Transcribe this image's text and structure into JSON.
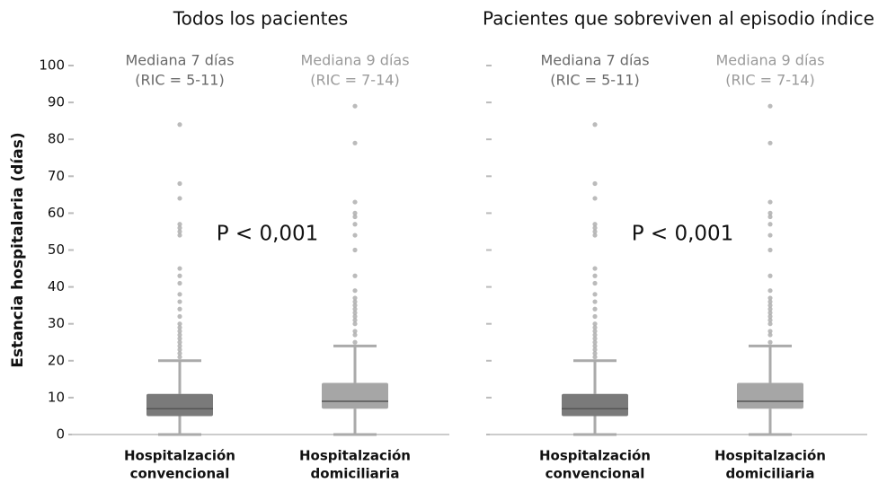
{
  "chart_data": [
    {
      "type": "box",
      "title": "Todos los pacientes",
      "ylabel": "Estancia hospitalaria (días)",
      "show_tick_labels": true,
      "ylim": [
        0,
        100
      ],
      "yticks": [
        0,
        10,
        20,
        30,
        40,
        50,
        60,
        70,
        80,
        90,
        100
      ],
      "categories": [
        [
          "Hospitalzación",
          "convencional"
        ],
        [
          "Hospitalzación",
          "domiciliaria"
        ]
      ],
      "annotations": [
        [
          "Mediana 7 días",
          "(RIC = 5-11)"
        ],
        [
          "Mediana 9 días",
          "(RIC = 7-14)"
        ]
      ],
      "p_label": "P < 0,001",
      "boxes": [
        {
          "color": "#7a7a7a",
          "text_color": "#6a6a6a",
          "min": 0,
          "q1": 5,
          "median": 7,
          "q3": 11,
          "max": 20,
          "outliers": [
            21,
            22,
            23,
            24,
            25,
            26,
            27,
            28,
            29,
            30,
            32,
            34,
            36,
            38,
            41,
            43,
            45,
            54,
            55,
            56,
            57,
            64,
            68,
            84
          ]
        },
        {
          "color": "#a6a6a6",
          "text_color": "#9a9a9a",
          "min": 0,
          "q1": 7,
          "median": 9,
          "q3": 14,
          "max": 24,
          "outliers": [
            25,
            27,
            28,
            30,
            31,
            32,
            33,
            34,
            35,
            36,
            37,
            39,
            43,
            50,
            54,
            57,
            59,
            60,
            63,
            79,
            89
          ]
        }
      ]
    },
    {
      "type": "box",
      "title": "Pacientes que sobreviven al episodio índice",
      "show_tick_labels": false,
      "ylim": [
        0,
        100
      ],
      "yticks": [
        0,
        10,
        20,
        30,
        40,
        50,
        60,
        70,
        80,
        90,
        100
      ],
      "categories": [
        [
          "Hospitalzación",
          "convencional"
        ],
        [
          "Hospitalzación",
          "domiciliaria"
        ]
      ],
      "annotations": [
        [
          "Mediana 7 días",
          "(RIC = 5-11)"
        ],
        [
          "Mediana 9 días",
          "(RIC = 7-14)"
        ]
      ],
      "p_label": "P < 0,001",
      "boxes": [
        {
          "color": "#7a7a7a",
          "text_color": "#6a6a6a",
          "min": 0,
          "q1": 5,
          "median": 7,
          "q3": 11,
          "max": 20,
          "outliers": [
            21,
            22,
            23,
            24,
            25,
            26,
            27,
            28,
            29,
            30,
            32,
            34,
            36,
            38,
            41,
            43,
            45,
            54,
            55,
            56,
            57,
            64,
            68,
            84
          ]
        },
        {
          "color": "#a6a6a6",
          "text_color": "#9a9a9a",
          "min": 0,
          "q1": 7,
          "median": 9,
          "q3": 14,
          "max": 24,
          "outliers": [
            25,
            27,
            28,
            30,
            31,
            32,
            33,
            34,
            35,
            36,
            37,
            39,
            43,
            50,
            54,
            57,
            59,
            60,
            63,
            79,
            89
          ]
        }
      ]
    }
  ]
}
